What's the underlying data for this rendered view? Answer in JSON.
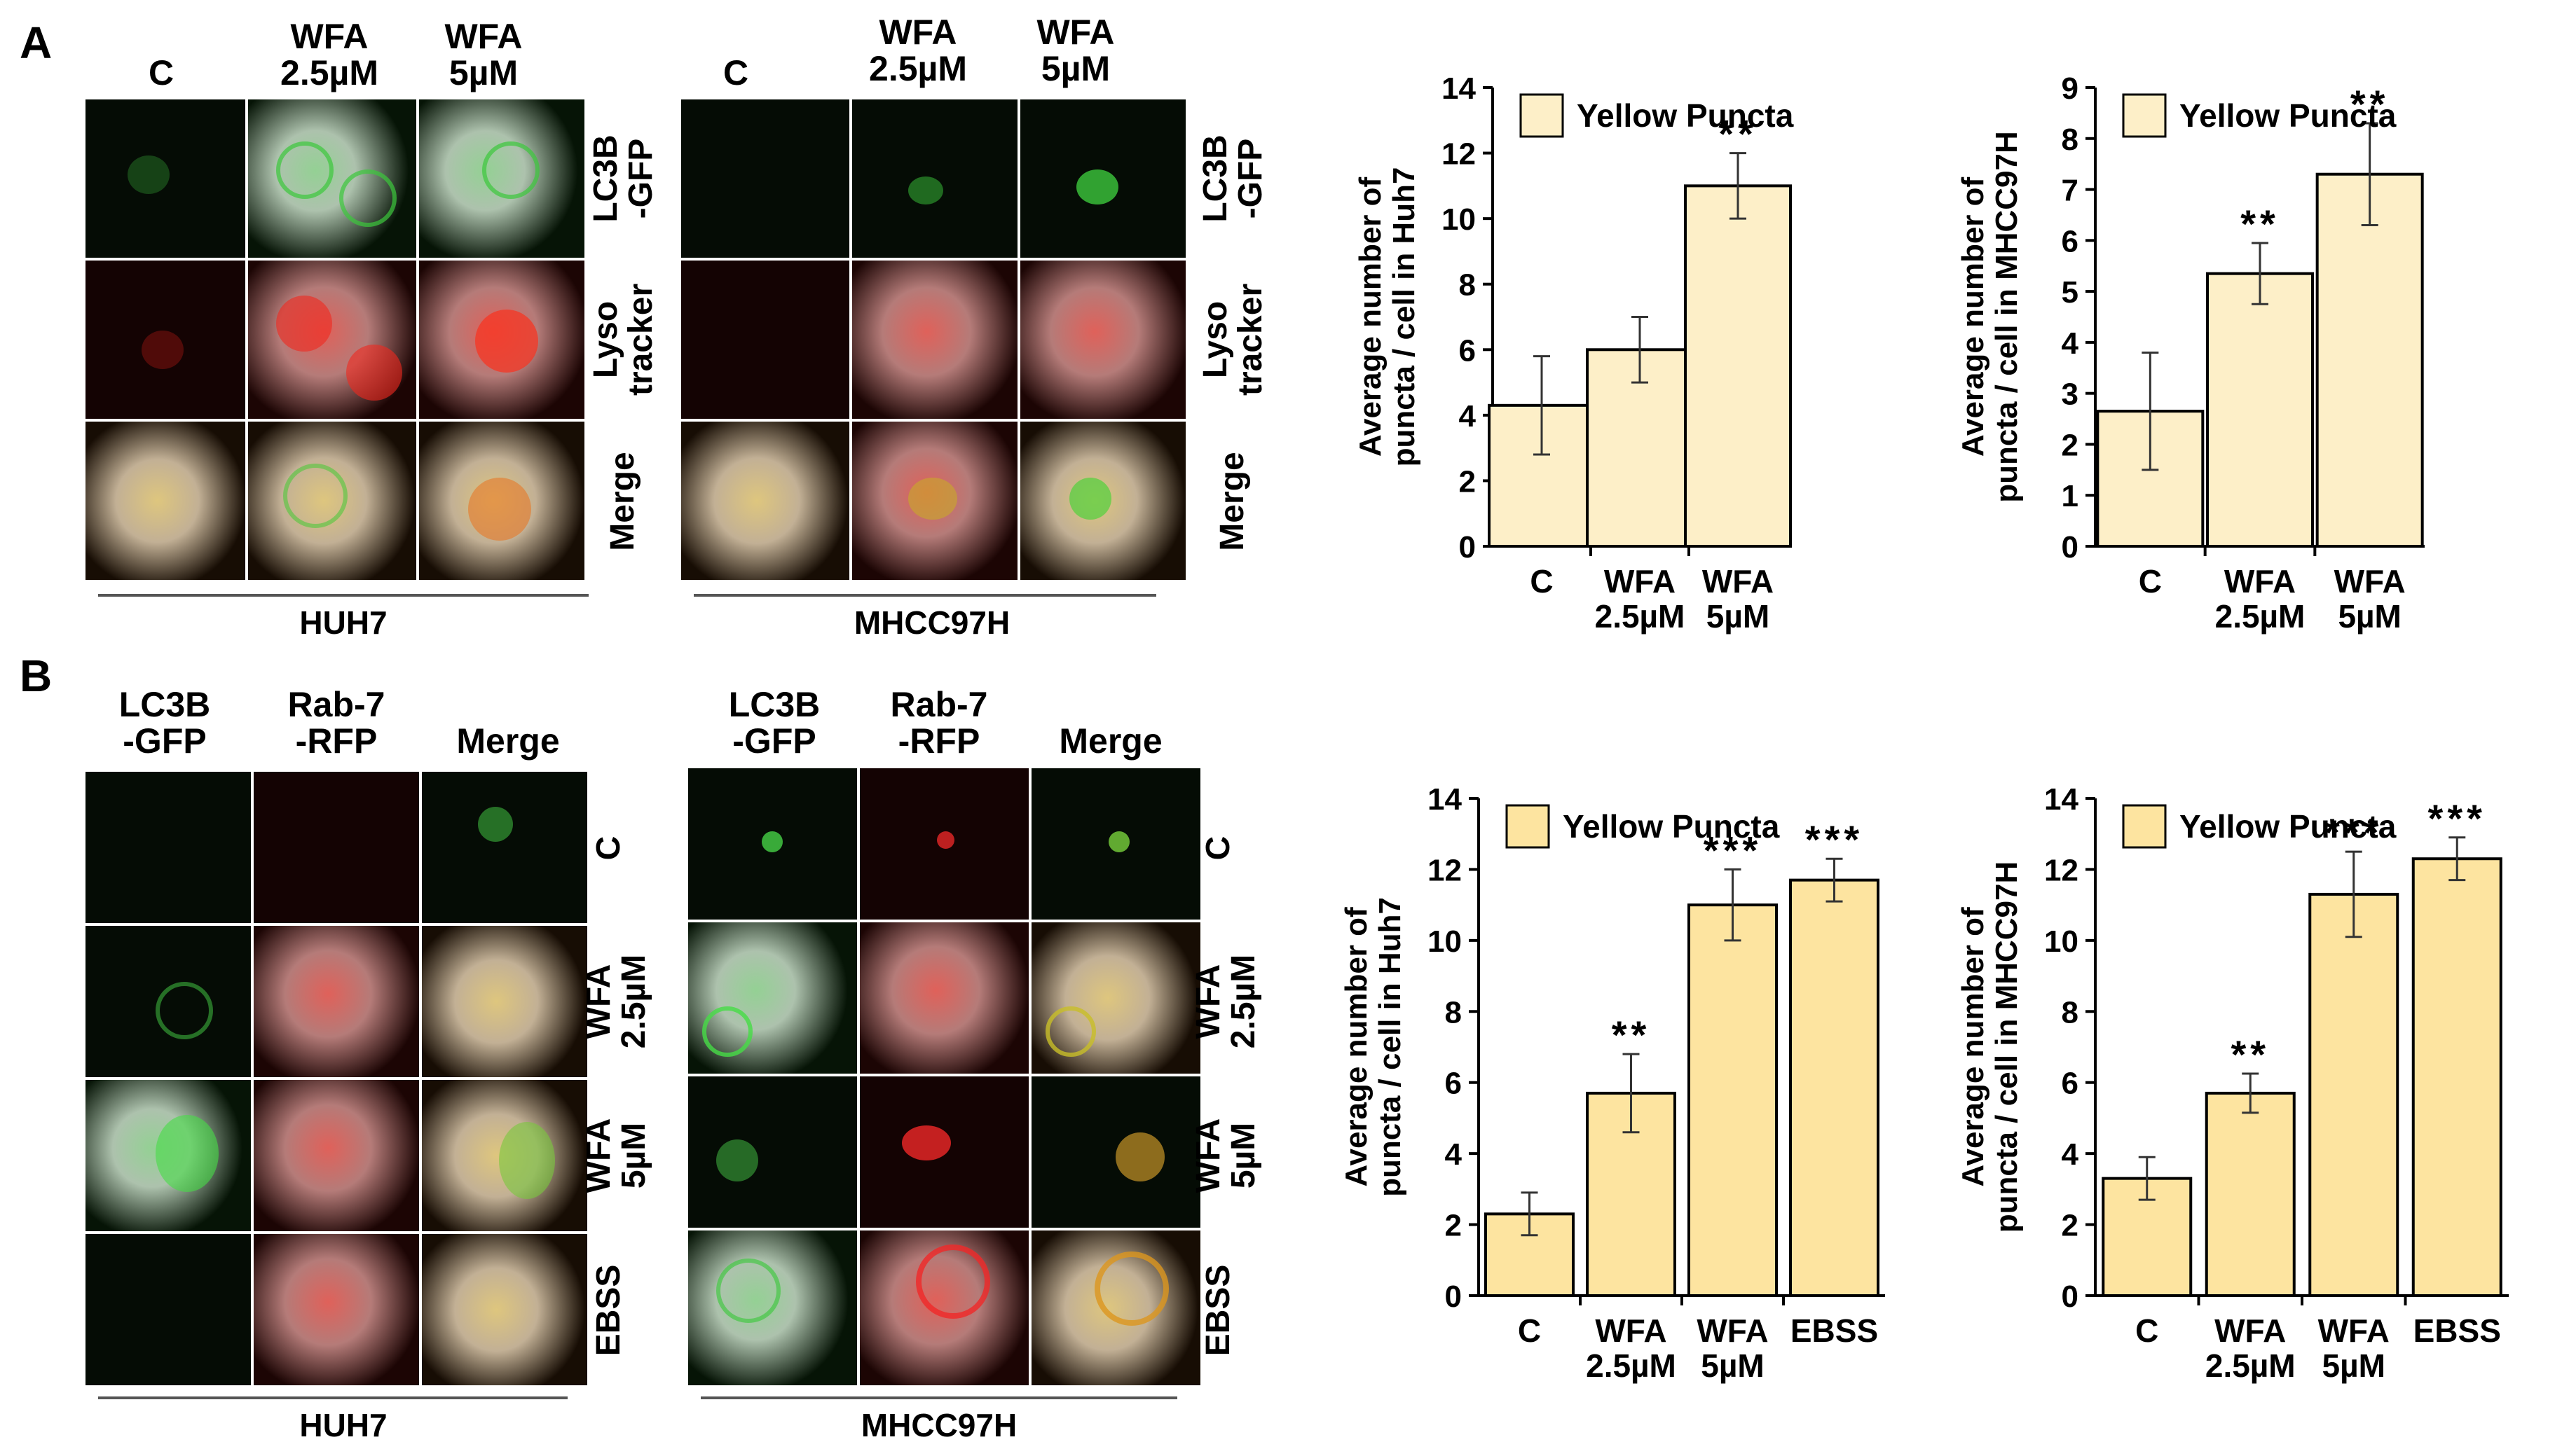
{
  "panelA": {
    "letter": "A",
    "huh7": {
      "cols": [
        "C",
        "WFA\n2.5µM",
        "WFA\n5µM"
      ],
      "rows": [
        "LC3B\n-GFP",
        "Lyso\ntracker",
        "Merge"
      ],
      "cell_line": "HUH7"
    },
    "mhcc": {
      "cols": [
        "C",
        "WFA\n2.5µM",
        "WFA\n5µM"
      ],
      "rows": [
        "LC3B\n-GFP",
        "Lyso\ntracker",
        "Merge"
      ],
      "cell_line": "MHCC97H"
    }
  },
  "panelB": {
    "letter": "B",
    "huh7": {
      "cols": [
        "LC3B\n-GFP",
        "Rab-7\n-RFP",
        "Merge"
      ],
      "rows": [
        "C",
        "WFA\n2.5µM",
        "WFA\n5µM",
        "EBSS"
      ],
      "cell_line": "HUH7"
    },
    "mhcc": {
      "cols": [
        "LC3B\n-GFP",
        "Rab-7\n-RFP",
        "Merge"
      ],
      "rows": [
        "C",
        "WFA\n2.5µM",
        "WFA\n5µM",
        "EBSS"
      ],
      "cell_line": "MHCC97H"
    }
  },
  "chart_data": [
    {
      "type": "bar",
      "categories": [
        "C",
        "WFA\n2.5µM",
        "WFA\n5µM"
      ],
      "series": [
        {
          "name": "Yellow Puncta",
          "values": [
            4.3,
            6.0,
            11.0
          ],
          "errors": [
            1.5,
            1.0,
            1.0
          ]
        }
      ],
      "significance": [
        "",
        "",
        "**"
      ],
      "ylabel": "Average number of\npuncta / cell in Huh7",
      "ylim": [
        0,
        14
      ],
      "yticks": [
        0,
        2,
        4,
        6,
        8,
        10,
        12,
        14
      ],
      "bar_color": "#fdefc8",
      "legend": "top-left"
    },
    {
      "type": "bar",
      "categories": [
        "C",
        "WFA\n2.5µM",
        "WFA\n5µM"
      ],
      "series": [
        {
          "name": "Yellow Puncta",
          "values": [
            2.65,
            5.35,
            7.3
          ],
          "errors": [
            1.15,
            0.6,
            1.0
          ]
        }
      ],
      "significance": [
        "",
        "**",
        "**"
      ],
      "ylabel": "Average number of\npuncta / cell in MHCC97H",
      "ylim": [
        0,
        9
      ],
      "yticks": [
        0,
        1,
        2,
        3,
        4,
        5,
        6,
        7,
        8,
        9
      ],
      "bar_color": "#fdefc8",
      "legend": "top-left"
    },
    {
      "type": "bar",
      "categories": [
        "C",
        "WFA\n2.5µM",
        "WFA\n5µM",
        "EBSS"
      ],
      "series": [
        {
          "name": "Yellow Puncta",
          "values": [
            2.3,
            5.7,
            11.0,
            11.7
          ],
          "errors": [
            0.6,
            1.1,
            1.0,
            0.6
          ]
        }
      ],
      "significance": [
        "",
        "**",
        "***",
        "***"
      ],
      "ylabel": "Average number of\npuncta / cell in Huh7",
      "ylim": [
        0,
        14
      ],
      "yticks": [
        0,
        2,
        4,
        6,
        8,
        10,
        12,
        14
      ],
      "bar_color": "#fde4a0",
      "legend": "top-left"
    },
    {
      "type": "bar",
      "categories": [
        "C",
        "WFA\n2.5µM",
        "WFA\n5µM",
        "EBSS"
      ],
      "series": [
        {
          "name": "Yellow Puncta",
          "values": [
            3.3,
            5.7,
            11.3,
            12.3
          ],
          "errors": [
            0.6,
            0.55,
            1.2,
            0.6
          ]
        }
      ],
      "significance": [
        "",
        "**",
        "***",
        "***"
      ],
      "ylabel": "Average number of\npuncta / cell in MHCC97H",
      "ylim": [
        0,
        14
      ],
      "yticks": [
        0,
        2,
        4,
        6,
        8,
        10,
        12,
        14
      ],
      "bar_color": "#fde4a0",
      "legend": "top-left"
    }
  ]
}
